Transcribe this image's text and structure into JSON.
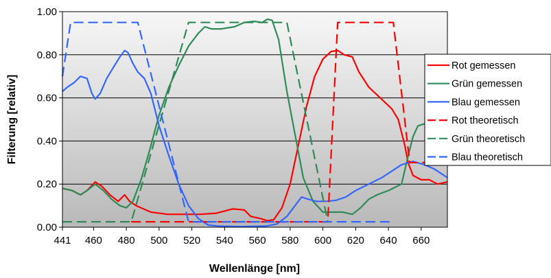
{
  "chart_data": {
    "type": "line",
    "title": "",
    "xlabel": "Wellenlänge [nm]",
    "ylabel": "Filterung [relativ]",
    "xlim": [
      441,
      676
    ],
    "ylim": [
      0,
      1
    ],
    "x_ticks": [
      "441",
      "460",
      "480",
      "500",
      "520",
      "540",
      "560",
      "580",
      "600",
      "620",
      "640",
      "660"
    ],
    "x_tick_values": [
      441,
      460,
      480,
      500,
      520,
      540,
      560,
      580,
      600,
      620,
      640,
      660
    ],
    "y_ticks": [
      "0.00",
      "0.20",
      "0.40",
      "0.60",
      "0.80",
      "1.00"
    ],
    "y_tick_values": [
      0,
      0.2,
      0.4,
      0.6,
      0.8,
      1.0
    ],
    "grid": "horizontal",
    "legend_position": "right",
    "series": [
      {
        "name": "Rot gemessen",
        "color": "#ff0000",
        "dash": false,
        "points": [
          [
            441,
            0.18
          ],
          [
            447,
            0.17
          ],
          [
            452,
            0.15
          ],
          [
            456,
            0.17
          ],
          [
            461,
            0.21
          ],
          [
            465,
            0.19
          ],
          [
            470,
            0.15
          ],
          [
            475,
            0.12
          ],
          [
            479,
            0.15
          ],
          [
            482,
            0.12
          ],
          [
            486,
            0.1
          ],
          [
            495,
            0.07
          ],
          [
            505,
            0.06
          ],
          [
            515,
            0.06
          ],
          [
            525,
            0.06
          ],
          [
            535,
            0.065
          ],
          [
            545,
            0.085
          ],
          [
            552,
            0.08
          ],
          [
            556,
            0.05
          ],
          [
            562,
            0.04
          ],
          [
            566,
            0.03
          ],
          [
            570,
            0.035
          ],
          [
            575,
            0.09
          ],
          [
            580,
            0.2
          ],
          [
            585,
            0.38
          ],
          [
            590,
            0.56
          ],
          [
            595,
            0.7
          ],
          [
            600,
            0.78
          ],
          [
            605,
            0.815
          ],
          [
            609,
            0.82
          ],
          [
            613,
            0.8
          ],
          [
            618,
            0.79
          ],
          [
            622,
            0.72
          ],
          [
            628,
            0.65
          ],
          [
            635,
            0.6
          ],
          [
            642,
            0.55
          ],
          [
            646,
            0.5
          ],
          [
            650,
            0.38
          ],
          [
            652,
            0.3
          ],
          [
            655,
            0.24
          ],
          [
            660,
            0.22
          ],
          [
            665,
            0.22
          ],
          [
            670,
            0.2
          ],
          [
            676,
            0.21
          ]
        ]
      },
      {
        "name": "Grün gemessen",
        "color": "#2e8b57",
        "dash": false,
        "points": [
          [
            441,
            0.18
          ],
          [
            447,
            0.17
          ],
          [
            452,
            0.15
          ],
          [
            456,
            0.17
          ],
          [
            461,
            0.2
          ],
          [
            466,
            0.17
          ],
          [
            471,
            0.13
          ],
          [
            476,
            0.1
          ],
          [
            480,
            0.09
          ],
          [
            484,
            0.12
          ],
          [
            489,
            0.22
          ],
          [
            494,
            0.35
          ],
          [
            500,
            0.52
          ],
          [
            506,
            0.65
          ],
          [
            512,
            0.75
          ],
          [
            518,
            0.84
          ],
          [
            524,
            0.9
          ],
          [
            528,
            0.93
          ],
          [
            532,
            0.92
          ],
          [
            538,
            0.92
          ],
          [
            546,
            0.93
          ],
          [
            552,
            0.95
          ],
          [
            558,
            0.955
          ],
          [
            563,
            0.95
          ],
          [
            566,
            0.965
          ],
          [
            569,
            0.96
          ],
          [
            573,
            0.87
          ],
          [
            578,
            0.63
          ],
          [
            583,
            0.43
          ],
          [
            588,
            0.23
          ],
          [
            594,
            0.12
          ],
          [
            600,
            0.07
          ],
          [
            606,
            0.07
          ],
          [
            612,
            0.07
          ],
          [
            618,
            0.06
          ],
          [
            623,
            0.09
          ],
          [
            628,
            0.13
          ],
          [
            633,
            0.15
          ],
          [
            640,
            0.17
          ],
          [
            648,
            0.2
          ],
          [
            652,
            0.33
          ],
          [
            655,
            0.42
          ],
          [
            658,
            0.47
          ],
          [
            662,
            0.48
          ],
          [
            665,
            0.45
          ]
        ]
      },
      {
        "name": "Blau gemessen",
        "color": "#3366ff",
        "dash": false,
        "points": [
          [
            441,
            0.63
          ],
          [
            444,
            0.65
          ],
          [
            448,
            0.67
          ],
          [
            452,
            0.7
          ],
          [
            456,
            0.69
          ],
          [
            459,
            0.62
          ],
          [
            461,
            0.595
          ],
          [
            464,
            0.62
          ],
          [
            468,
            0.69
          ],
          [
            472,
            0.74
          ],
          [
            476,
            0.79
          ],
          [
            479,
            0.82
          ],
          [
            481,
            0.81
          ],
          [
            484,
            0.76
          ],
          [
            487,
            0.72
          ],
          [
            491,
            0.69
          ],
          [
            495,
            0.62
          ],
          [
            500,
            0.47
          ],
          [
            506,
            0.33
          ],
          [
            512,
            0.2
          ],
          [
            518,
            0.1
          ],
          [
            524,
            0.04
          ],
          [
            530,
            0.01
          ],
          [
            536,
            0.005
          ],
          [
            550,
            0.003
          ],
          [
            565,
            0.005
          ],
          [
            572,
            0.015
          ],
          [
            578,
            0.05
          ],
          [
            583,
            0.1
          ],
          [
            587,
            0.14
          ],
          [
            591,
            0.13
          ],
          [
            596,
            0.12
          ],
          [
            602,
            0.12
          ],
          [
            608,
            0.125
          ],
          [
            614,
            0.14
          ],
          [
            620,
            0.17
          ],
          [
            628,
            0.2
          ],
          [
            636,
            0.23
          ],
          [
            642,
            0.26
          ],
          [
            648,
            0.29
          ],
          [
            655,
            0.305
          ],
          [
            662,
            0.29
          ],
          [
            668,
            0.27
          ],
          [
            676,
            0.23
          ]
        ]
      },
      {
        "name": "Rot theoretisch",
        "color": "#ff0000",
        "dash": true,
        "points": [
          [
            483,
            0.025
          ],
          [
            603,
            0.025
          ],
          [
            609,
            0.95
          ],
          [
            643,
            0.95
          ],
          [
            653,
            0.3
          ],
          [
            676,
            0.3
          ]
        ]
      },
      {
        "name": "Grün theoretisch",
        "color": "#2e8b57",
        "dash": true,
        "points": [
          [
            441,
            0.025
          ],
          [
            483,
            0.025
          ],
          [
            518,
            0.95
          ],
          [
            578,
            0.95
          ],
          [
            603,
            0.025
          ]
        ]
      },
      {
        "name": "Blau theoretisch",
        "color": "#3366ff",
        "dash": true,
        "points": [
          [
            441,
            0.7
          ],
          [
            446,
            0.95
          ],
          [
            487,
            0.95
          ],
          [
            518,
            0.025
          ],
          [
            643,
            0.025
          ]
        ]
      }
    ]
  }
}
